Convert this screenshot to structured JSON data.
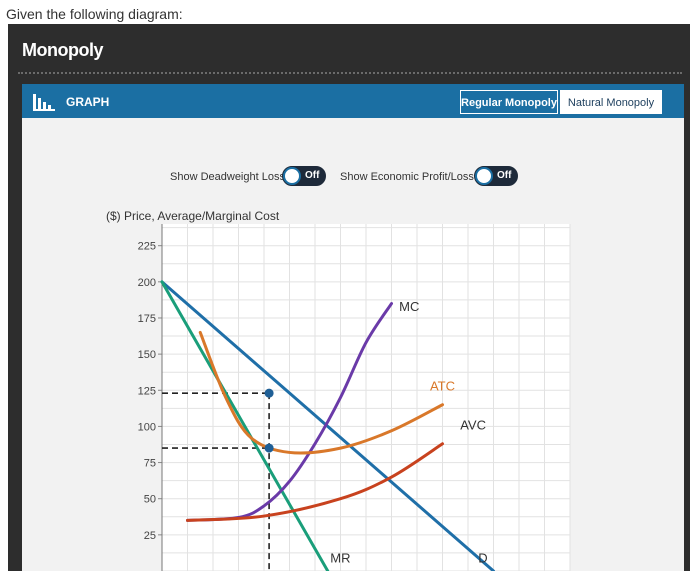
{
  "question": "Given the following diagram:",
  "app": {
    "title": "Monopoly",
    "graph_label": "GRAPH",
    "tabs": [
      {
        "label": "Regular Monopoly",
        "active": true
      },
      {
        "label": "Natural Monopoly",
        "active": false
      }
    ],
    "toggles": [
      {
        "label": "Show Deadweight Loss",
        "state": "Off"
      },
      {
        "label": "Show Economic Profit/Loss",
        "state": "Off"
      }
    ],
    "colors": {
      "header_bg": "#2d2d2d",
      "accent": "#1b6fa3",
      "panel_bg": "#f2f2f2"
    }
  },
  "chart_data": {
    "type": "line",
    "ylabel": "($) Price, Average/Marginal Cost",
    "xlabel": "",
    "yticks": [
      25,
      50,
      75,
      100,
      125,
      150,
      175,
      200,
      225
    ],
    "ylim": [
      0,
      240
    ],
    "xlim": [
      0,
      16
    ],
    "grid": true,
    "series": [
      {
        "name": "D",
        "color": "#1f6fa8",
        "points": [
          [
            0,
            200
          ],
          [
            13,
            0
          ]
        ]
      },
      {
        "name": "MR",
        "color": "#1a9e7a",
        "points": [
          [
            0,
            200
          ],
          [
            6.5,
            0
          ]
        ]
      },
      {
        "name": "MC",
        "color": "#6a3aa8",
        "points": [
          [
            1,
            35
          ],
          [
            3,
            37
          ],
          [
            4,
            45
          ],
          [
            5,
            62
          ],
          [
            6,
            88
          ],
          [
            7,
            120
          ],
          [
            8,
            158
          ],
          [
            9,
            185
          ]
        ]
      },
      {
        "name": "ATC",
        "color": "#d9782a",
        "points": [
          [
            1.5,
            165
          ],
          [
            2.5,
            120
          ],
          [
            3.5,
            92
          ],
          [
            5,
            82
          ],
          [
            7,
            85
          ],
          [
            9,
            97
          ],
          [
            11,
            115
          ]
        ]
      },
      {
        "name": "AVC",
        "color": "#c8421e",
        "points": [
          [
            1,
            35
          ],
          [
            4,
            38
          ],
          [
            7,
            50
          ],
          [
            9,
            65
          ],
          [
            11,
            88
          ]
        ]
      }
    ],
    "annotations": [
      {
        "type": "point",
        "x": 4.2,
        "y": 123
      },
      {
        "type": "point",
        "x": 4.2,
        "y": 85
      }
    ]
  }
}
